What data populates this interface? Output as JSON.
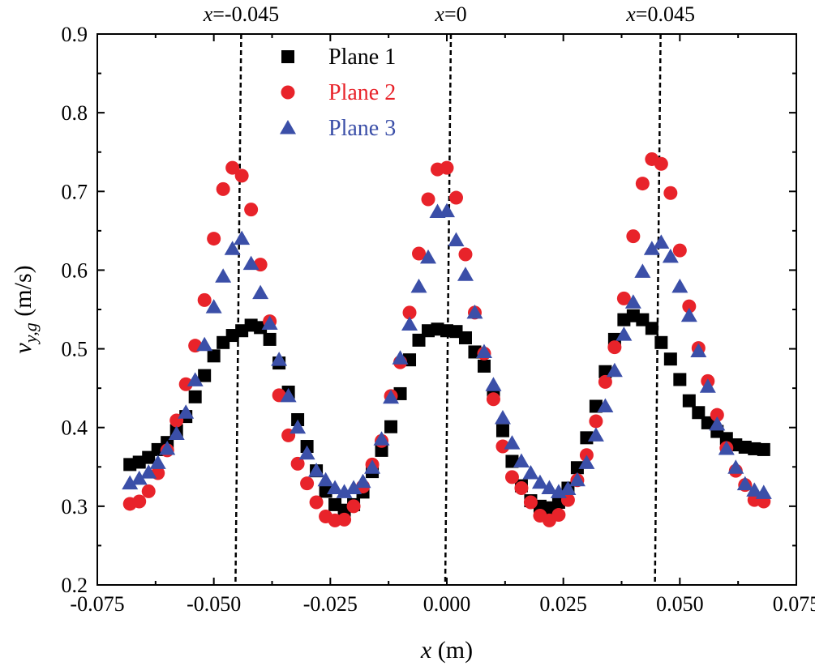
{
  "chart_data": {
    "type": "scatter",
    "xlabel_var": "x",
    "xlabel_unit": " (m)",
    "ylabel_var": "v",
    "ylabel_sub": "y,g",
    "ylabel_unit": " (m/s)",
    "xlim": [
      -0.075,
      0.075
    ],
    "ylim": [
      0.2,
      0.9
    ],
    "xticks": [
      -0.075,
      -0.05,
      -0.025,
      0.0,
      0.025,
      0.05,
      0.075
    ],
    "xtick_labels": [
      "-0.075",
      "-0.050",
      "-0.025",
      "0.000",
      "0.025",
      "0.050",
      "0.075"
    ],
    "yticks": [
      0.2,
      0.3,
      0.4,
      0.5,
      0.6,
      0.7,
      0.8,
      0.9
    ],
    "ytick_labels": [
      "0.2",
      "0.3",
      "0.4",
      "0.5",
      "0.6",
      "0.7",
      "0.8",
      "0.9"
    ],
    "grid": false,
    "legend_position": "top-center",
    "reference_lines": [
      {
        "x": -0.045,
        "label_var": "x",
        "label_value": "=-0.045"
      },
      {
        "x": 0.0,
        "label_var": "x",
        "label_value": "=0"
      },
      {
        "x": 0.045,
        "label_var": "x",
        "label_value": "=0.045"
      }
    ],
    "series": [
      {
        "name": "Plane 1",
        "marker": "square",
        "color": "#000000",
        "x": [
          -0.068,
          -0.066,
          -0.064,
          -0.062,
          -0.06,
          -0.058,
          -0.056,
          -0.054,
          -0.052,
          -0.05,
          -0.048,
          -0.046,
          -0.044,
          -0.042,
          -0.04,
          -0.038,
          -0.036,
          -0.034,
          -0.032,
          -0.03,
          -0.028,
          -0.026,
          -0.024,
          -0.022,
          -0.02,
          -0.018,
          -0.016,
          -0.014,
          -0.012,
          -0.01,
          -0.008,
          -0.006,
          -0.004,
          -0.002,
          0.0,
          0.002,
          0.004,
          0.006,
          0.008,
          0.01,
          0.012,
          0.014,
          0.016,
          0.018,
          0.02,
          0.022,
          0.024,
          0.026,
          0.028,
          0.03,
          0.032,
          0.034,
          0.036,
          0.038,
          0.04,
          0.042,
          0.044,
          0.046,
          0.048,
          0.05,
          0.052,
          0.054,
          0.056,
          0.058,
          0.06,
          0.062,
          0.064,
          0.066,
          0.068
        ],
        "y": [
          0.353,
          0.356,
          0.362,
          0.372,
          0.381,
          0.396,
          0.414,
          0.439,
          0.466,
          0.491,
          0.508,
          0.517,
          0.523,
          0.53,
          0.527,
          0.512,
          0.482,
          0.445,
          0.41,
          0.376,
          0.345,
          0.319,
          0.302,
          0.295,
          0.302,
          0.318,
          0.344,
          0.371,
          0.401,
          0.443,
          0.486,
          0.511,
          0.523,
          0.525,
          0.523,
          0.522,
          0.514,
          0.496,
          0.478,
          0.442,
          0.396,
          0.357,
          0.326,
          0.307,
          0.3,
          0.298,
          0.305,
          0.323,
          0.349,
          0.387,
          0.427,
          0.471,
          0.512,
          0.537,
          0.542,
          0.537,
          0.526,
          0.508,
          0.487,
          0.461,
          0.434,
          0.419,
          0.406,
          0.395,
          0.386,
          0.378,
          0.375,
          0.373,
          0.372
        ]
      },
      {
        "name": "Plane 2",
        "marker": "circle",
        "color": "#e8232a",
        "x": [
          -0.068,
          -0.066,
          -0.064,
          -0.062,
          -0.06,
          -0.058,
          -0.056,
          -0.054,
          -0.052,
          -0.05,
          -0.048,
          -0.046,
          -0.044,
          -0.042,
          -0.04,
          -0.038,
          -0.036,
          -0.034,
          -0.032,
          -0.03,
          -0.028,
          -0.026,
          -0.024,
          -0.022,
          -0.02,
          -0.018,
          -0.016,
          -0.014,
          -0.012,
          -0.01,
          -0.008,
          -0.006,
          -0.004,
          -0.002,
          0.0,
          0.002,
          0.004,
          0.006,
          0.008,
          0.01,
          0.012,
          0.014,
          0.016,
          0.018,
          0.02,
          0.022,
          0.024,
          0.026,
          0.028,
          0.03,
          0.032,
          0.034,
          0.036,
          0.038,
          0.04,
          0.042,
          0.044,
          0.046,
          0.048,
          0.05,
          0.052,
          0.054,
          0.056,
          0.058,
          0.06,
          0.062,
          0.064,
          0.066,
          0.068
        ],
        "y": [
          0.303,
          0.306,
          0.319,
          0.342,
          0.371,
          0.409,
          0.455,
          0.504,
          0.562,
          0.64,
          0.703,
          0.73,
          0.72,
          0.677,
          0.607,
          0.535,
          0.441,
          0.39,
          0.354,
          0.329,
          0.305,
          0.287,
          0.282,
          0.283,
          0.3,
          0.325,
          0.353,
          0.383,
          0.44,
          0.483,
          0.546,
          0.621,
          0.69,
          0.728,
          0.73,
          0.692,
          0.62,
          0.546,
          0.494,
          0.436,
          0.376,
          0.337,
          0.323,
          0.305,
          0.288,
          0.282,
          0.289,
          0.308,
          0.333,
          0.365,
          0.408,
          0.458,
          0.502,
          0.564,
          0.643,
          0.71,
          0.741,
          0.735,
          0.698,
          0.625,
          0.554,
          0.501,
          0.459,
          0.416,
          0.374,
          0.345,
          0.327,
          0.308,
          0.306
        ]
      },
      {
        "name": "Plane 3",
        "marker": "triangle",
        "color": "#3b4fa8",
        "x": [
          -0.068,
          -0.066,
          -0.064,
          -0.062,
          -0.06,
          -0.058,
          -0.056,
          -0.054,
          -0.052,
          -0.05,
          -0.048,
          -0.046,
          -0.044,
          -0.042,
          -0.04,
          -0.038,
          -0.036,
          -0.034,
          -0.032,
          -0.03,
          -0.028,
          -0.026,
          -0.024,
          -0.022,
          -0.02,
          -0.018,
          -0.016,
          -0.014,
          -0.012,
          -0.01,
          -0.008,
          -0.006,
          -0.004,
          -0.002,
          0.0,
          0.002,
          0.004,
          0.006,
          0.008,
          0.01,
          0.012,
          0.014,
          0.016,
          0.018,
          0.02,
          0.022,
          0.024,
          0.026,
          0.028,
          0.03,
          0.032,
          0.034,
          0.036,
          0.038,
          0.04,
          0.042,
          0.044,
          0.046,
          0.048,
          0.05,
          0.052,
          0.054,
          0.056,
          0.058,
          0.06,
          0.062,
          0.064,
          0.066,
          0.068
        ],
        "y": [
          0.329,
          0.335,
          0.343,
          0.355,
          0.373,
          0.392,
          0.419,
          0.46,
          0.505,
          0.553,
          0.592,
          0.627,
          0.64,
          0.608,
          0.571,
          0.532,
          0.486,
          0.44,
          0.4,
          0.367,
          0.345,
          0.333,
          0.323,
          0.318,
          0.323,
          0.331,
          0.349,
          0.385,
          0.438,
          0.488,
          0.531,
          0.579,
          0.616,
          0.674,
          0.675,
          0.638,
          0.594,
          0.546,
          0.496,
          0.454,
          0.412,
          0.38,
          0.357,
          0.342,
          0.33,
          0.323,
          0.318,
          0.322,
          0.333,
          0.355,
          0.39,
          0.427,
          0.472,
          0.518,
          0.559,
          0.598,
          0.627,
          0.635,
          0.617,
          0.579,
          0.542,
          0.497,
          0.452,
          0.404,
          0.373,
          0.349,
          0.328,
          0.32,
          0.317
        ]
      }
    ]
  }
}
